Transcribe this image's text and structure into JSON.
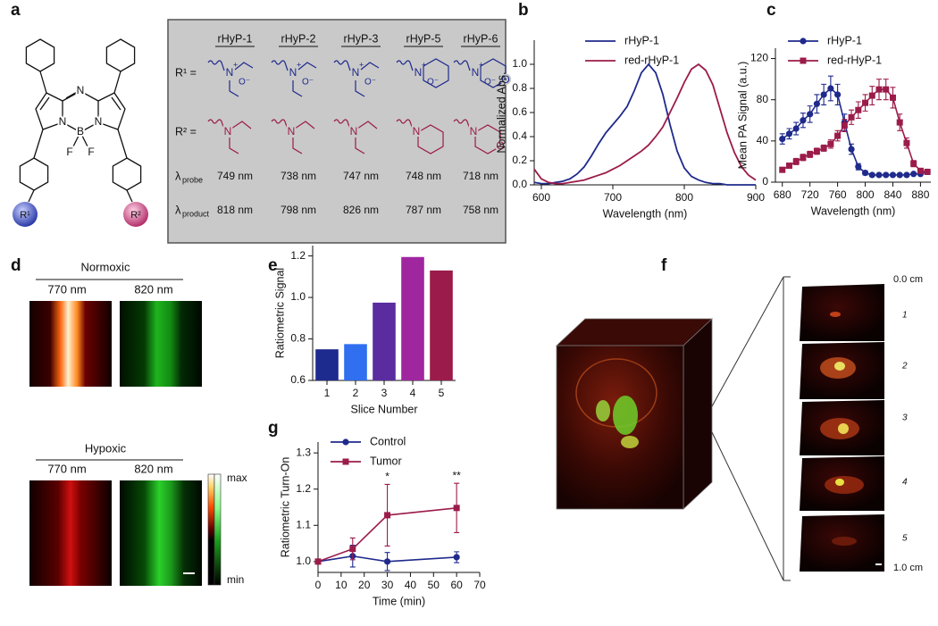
{
  "panel_labels": [
    "a",
    "b",
    "c",
    "d",
    "e",
    "f",
    "g"
  ],
  "structure": {
    "atoms": {
      "nitrogen": "N",
      "boron": "B",
      "fluorine": "F"
    },
    "r_groups": [
      "R¹",
      "R²"
    ]
  },
  "table": {
    "headers": [
      "rHyP-1",
      "rHyP-2",
      "rHyP-3",
      "rHyP-5",
      "rHyP-6"
    ],
    "substituent_rows": [
      "R¹ =",
      "R² ="
    ],
    "lambda": "λ",
    "property_rows": [
      {
        "sub": "probe",
        "values": [
          "749 nm",
          "738 nm",
          "747 nm",
          "748 nm",
          "718 nm"
        ]
      },
      {
        "sub": "product",
        "values": [
          "818 nm",
          "798 nm",
          "826 nm",
          "787 nm",
          "758 nm"
        ]
      }
    ],
    "atoms": {
      "nitrogen": "N",
      "oxygen": "O",
      "plus": "+",
      "oxide": "O⁻"
    }
  },
  "imaging": {
    "normoxic": "Normoxic",
    "hypoxic": "Hypoxic",
    "channels": [
      "770 nm",
      "820 nm"
    ],
    "colorbar": [
      "max",
      "min"
    ]
  },
  "volume": {
    "depth_labels": [
      "0.0 cm",
      "1.0 cm"
    ],
    "slices": [
      "1",
      "2",
      "3",
      "4",
      "5"
    ]
  },
  "chart_data": [
    {
      "type": "line",
      "xlabel": "Wavelength (nm)",
      "ylabel": "Normalized Abs.",
      "x": [
        590,
        600,
        610,
        620,
        630,
        640,
        650,
        660,
        670,
        680,
        690,
        700,
        710,
        720,
        730,
        740,
        750,
        760,
        770,
        780,
        790,
        800,
        810,
        820,
        830,
        840,
        850,
        860,
        870,
        880,
        890,
        900
      ],
      "series": [
        {
          "name": "rHyP-1",
          "color": "#1f2a8c",
          "values": [
            0.02,
            0.01,
            0.01,
            0.02,
            0.03,
            0.05,
            0.09,
            0.15,
            0.24,
            0.34,
            0.43,
            0.5,
            0.57,
            0.65,
            0.78,
            0.93,
            1.0,
            0.93,
            0.75,
            0.5,
            0.28,
            0.14,
            0.07,
            0.04,
            0.02,
            0.01,
            0.01,
            0,
            0,
            0,
            0,
            0
          ]
        },
        {
          "name": "red-rHyP-1",
          "color": "#9b1b4a",
          "values": [
            0.13,
            0.05,
            0.02,
            0.01,
            0.01,
            0.02,
            0.03,
            0.04,
            0.06,
            0.08,
            0.1,
            0.13,
            0.16,
            0.2,
            0.24,
            0.28,
            0.33,
            0.4,
            0.48,
            0.6,
            0.72,
            0.85,
            0.96,
            1.0,
            0.95,
            0.83,
            0.63,
            0.43,
            0.27,
            0.15,
            0.08,
            0.04
          ]
        }
      ],
      "xlim": [
        590,
        900
      ],
      "xticks": [
        600,
        700,
        800,
        900
      ],
      "ylim": [
        0,
        1.2
      ],
      "yticks": [
        {
          "value": 0,
          "label": "0.0"
        },
        0.2,
        0.4,
        0.6,
        0.8,
        {
          "value": 1,
          "label": "1.0"
        }
      ],
      "legend": "upper center"
    },
    {
      "type": "line",
      "xlabel": "Wavelength (nm)",
      "ylabel": "Mean PA Signal (a.u.)",
      "x": [
        680,
        690,
        700,
        710,
        720,
        730,
        740,
        750,
        760,
        770,
        780,
        790,
        800,
        810,
        820,
        830,
        840,
        850,
        860,
        870,
        880,
        890
      ],
      "series": [
        {
          "name": "rHyP-1",
          "color": "#1f2a8c",
          "marker": "circle",
          "values": [
            42,
            47,
            52,
            60,
            66,
            76,
            85,
            91,
            85,
            58,
            32,
            15,
            9,
            7,
            7,
            7,
            7,
            7,
            7,
            8,
            8,
            10
          ],
          "errors": [
            5,
            5,
            6,
            7,
            8,
            9,
            10,
            12,
            10,
            8,
            5,
            3,
            2,
            1,
            1,
            1,
            1,
            1,
            1,
            1,
            1,
            1
          ]
        },
        {
          "name": "red-rHyP-1",
          "color": "#9b1b4a",
          "marker": "square",
          "values": [
            12,
            16,
            20,
            24,
            27,
            30,
            33,
            37,
            45,
            55,
            63,
            70,
            77,
            84,
            90,
            90,
            82,
            58,
            38,
            18,
            11,
            10
          ],
          "errors": [
            2,
            2,
            3,
            3,
            3,
            3,
            3,
            4,
            5,
            6,
            7,
            8,
            8,
            9,
            10,
            10,
            10,
            8,
            5,
            3,
            2,
            2
          ]
        }
      ],
      "xlim": [
        670,
        895
      ],
      "xticks": [
        680,
        720,
        760,
        800,
        840,
        880
      ],
      "ylim": [
        0,
        130
      ],
      "yticks": [
        0,
        40,
        80,
        120
      ],
      "legend": "upper left"
    },
    {
      "type": "bar",
      "xlabel": "Slice Number",
      "ylabel": "Ratiometric Signal",
      "categories": [
        "1",
        "2",
        "3",
        "4",
        "5"
      ],
      "values": [
        0.75,
        0.775,
        0.975,
        1.195,
        1.13
      ],
      "colors": [
        "#1d2b8f",
        "#2f6ff0",
        "#5a2ca0",
        "#a026a0",
        "#9b1b4a"
      ],
      "ylim": [
        0.6,
        1.25
      ],
      "yticks": [
        0.6,
        0.8,
        {
          "value": 1,
          "label": "1.0"
        },
        1.2
      ]
    },
    {
      "type": "line",
      "xlabel": "Time (min)",
      "ylabel": "Ratiometric Turn-On",
      "x": [
        0,
        15,
        30,
        60
      ],
      "series": [
        {
          "name": "Control",
          "color": "#1f2a8c",
          "marker": "circle",
          "values": [
            1.0,
            1.015,
            1.0,
            1.012
          ],
          "errors": [
            0.005,
            0.03,
            0.025,
            0.015
          ]
        },
        {
          "name": "Tumor",
          "color": "#9b1b4a",
          "marker": "square",
          "values": [
            1.0,
            1.035,
            1.128,
            1.148
          ],
          "errors": [
            0.005,
            0.03,
            0.085,
            0.068
          ]
        }
      ],
      "xlim": [
        0,
        70
      ],
      "xticks": [
        0,
        10,
        20,
        30,
        40,
        50,
        60,
        70
      ],
      "ylim": [
        0.97,
        1.33
      ],
      "yticks": [
        {
          "value": 1,
          "label": "1.0"
        },
        1.1,
        1.2,
        1.3
      ],
      "annotations": [
        {
          "text": "*",
          "x": 30
        },
        {
          "text": "**",
          "x": 60
        }
      ],
      "legend": "upper left"
    }
  ]
}
